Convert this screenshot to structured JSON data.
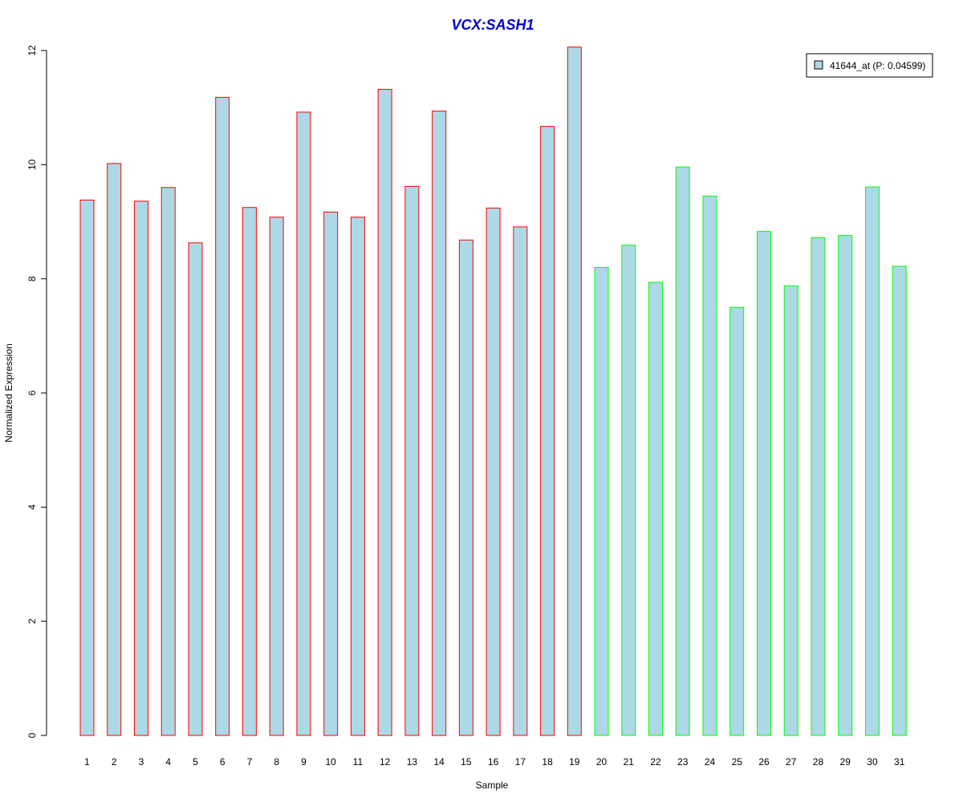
{
  "chart_data": {
    "type": "bar",
    "title": "VCX:SASH1",
    "xlabel": "Sample",
    "ylabel": "Normalized Expression",
    "ylim": [
      0,
      12
    ],
    "yticks": [
      0,
      2,
      4,
      6,
      8,
      10,
      12
    ],
    "categories": [
      "1",
      "2",
      "3",
      "4",
      "5",
      "6",
      "7",
      "8",
      "9",
      "10",
      "11",
      "12",
      "13",
      "14",
      "15",
      "16",
      "17",
      "18",
      "19",
      "20",
      "21",
      "22",
      "23",
      "24",
      "25",
      "26",
      "27",
      "28",
      "29",
      "30",
      "31"
    ],
    "series": [
      {
        "name": "41644_at (P: 0.04599)",
        "values": [
          9.38,
          10.02,
          9.36,
          9.6,
          8.63,
          11.18,
          9.25,
          9.08,
          10.92,
          9.17,
          9.08,
          11.32,
          9.62,
          10.94,
          8.68,
          9.24,
          8.91,
          10.67,
          12.06,
          8.2,
          8.59,
          7.94,
          9.96,
          9.45,
          7.5,
          8.83,
          7.88,
          8.72,
          8.76,
          9.61,
          8.22
        ]
      }
    ],
    "groups": [
      {
        "from": 1,
        "to": 19,
        "border_color": "#ff0000"
      },
      {
        "from": 20,
        "to": 31,
        "border_color": "#00ff00"
      }
    ],
    "grid": false,
    "legend_position": "top-right",
    "colors": {
      "title": "#0000cc",
      "bar_fill": "#add8e6",
      "axis": "#000000",
      "legend_border": "#000000"
    }
  }
}
